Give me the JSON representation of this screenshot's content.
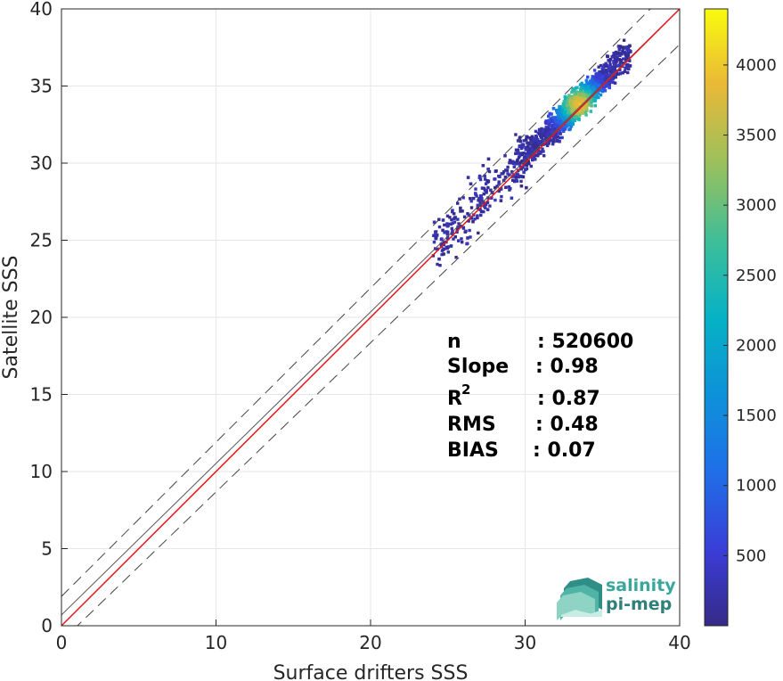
{
  "chart_data": {
    "type": "scatter",
    "subtype": "2d-density-histogram",
    "xlabel": "Surface drifters SSS",
    "ylabel": "Satellite SSS",
    "xlim": [
      0,
      40
    ],
    "ylim": [
      0,
      40
    ],
    "xticks": [
      "0",
      "10",
      "20",
      "30",
      "40"
    ],
    "yticks": [
      "0",
      "5",
      "10",
      "15",
      "20",
      "25",
      "30",
      "35",
      "40"
    ],
    "grid": true,
    "density_peak": {
      "x": 33.5,
      "y": 33.8,
      "count": 4400
    },
    "density_extent": {
      "x": [
        23.3,
        37.0
      ],
      "y": [
        22.4,
        38.0
      ]
    },
    "reference_lines": {
      "identity": {
        "slope": 1,
        "intercept": 0,
        "color": "#555555"
      },
      "fit": {
        "slope": 0.98,
        "intercept": 0.7,
        "color": "#e8161b"
      },
      "bounds": {
        "offset": 1.0,
        "style": "dashed",
        "color": "#444444"
      }
    },
    "colorbar": {
      "min": 0,
      "max": 4400,
      "ticks": [
        "500",
        "1000",
        "1500",
        "2000",
        "2500",
        "3000",
        "3500",
        "4000"
      ],
      "colormap": "parula"
    }
  },
  "stats": {
    "n_label": "n",
    "n_value": ": 520600",
    "slope_label": "Slope",
    "slope_value": ": 0.98",
    "r2_label": "R",
    "r2_sup": "2",
    "r2_value": ": 0.87",
    "rms_label": "RMS",
    "rms_value": ": 0.48",
    "bias_label": "BIAS",
    "bias_value": ": 0.07"
  },
  "logo": {
    "line1": "salinity",
    "line2": "pi-mep"
  }
}
